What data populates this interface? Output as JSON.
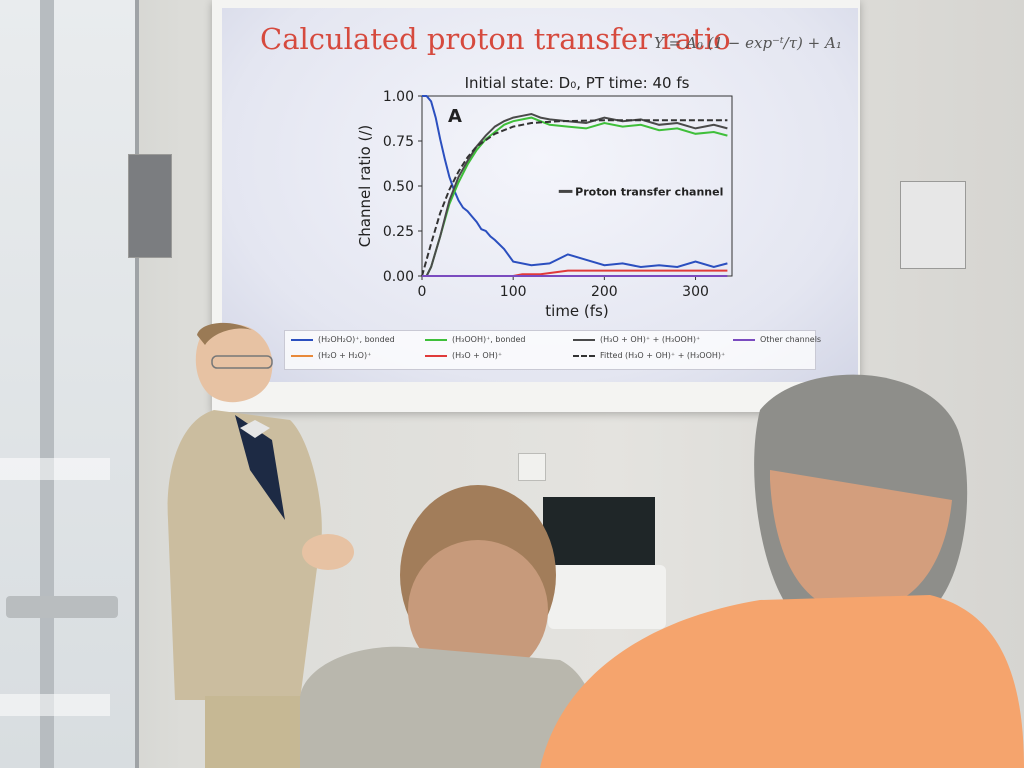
{
  "slide": {
    "title": "Calculated proton transfer ratio",
    "formula": "Y = A₀ (1 − exp⁻ᵗ/τ) + A₁"
  },
  "chart_data": {
    "type": "line",
    "title": "Initial state: D₀, PT time: 40 fs",
    "panel_label": "A",
    "xlabel": "time (fs)",
    "ylabel": "Channel ratio (/)",
    "xlim": [
      0,
      340
    ],
    "ylim": [
      0,
      1.0
    ],
    "xticks": [
      "0",
      "100",
      "200",
      "300"
    ],
    "yticks": [
      "0.00",
      "0.25",
      "0.50",
      "0.75",
      "1.00"
    ],
    "annotation": "Proton transfer channel",
    "series": [
      {
        "name": "(H₂OH₂O)⁺, bonded",
        "color": "#2b4fbf",
        "x": [
          0,
          5,
          10,
          15,
          20,
          25,
          30,
          35,
          40,
          45,
          50,
          55,
          60,
          65,
          70,
          75,
          80,
          90,
          100,
          120,
          140,
          160,
          180,
          200,
          220,
          240,
          260,
          280,
          300,
          320,
          335
        ],
        "y": [
          1.0,
          1.0,
          0.97,
          0.88,
          0.76,
          0.65,
          0.55,
          0.48,
          0.42,
          0.38,
          0.36,
          0.33,
          0.3,
          0.26,
          0.25,
          0.22,
          0.2,
          0.15,
          0.08,
          0.06,
          0.07,
          0.12,
          0.09,
          0.06,
          0.07,
          0.05,
          0.06,
          0.05,
          0.08,
          0.05,
          0.07
        ]
      },
      {
        "name": "(H₂O + H₂O)⁺",
        "color": "#e8893a",
        "x": [
          0,
          335
        ],
        "y": [
          0.0,
          0.0
        ]
      },
      {
        "name": "(H₃OOH)⁺, bonded",
        "color": "#3fbf3a",
        "x": [
          0,
          5,
          10,
          20,
          30,
          40,
          50,
          60,
          70,
          80,
          90,
          100,
          110,
          120,
          130,
          140,
          160,
          180,
          200,
          220,
          240,
          260,
          280,
          300,
          320,
          335
        ],
        "y": [
          0.0,
          0.0,
          0.05,
          0.22,
          0.4,
          0.52,
          0.62,
          0.7,
          0.76,
          0.8,
          0.84,
          0.86,
          0.87,
          0.88,
          0.86,
          0.84,
          0.83,
          0.82,
          0.85,
          0.83,
          0.84,
          0.81,
          0.82,
          0.79,
          0.8,
          0.78
        ]
      },
      {
        "name": "(H₃O + OH)⁺",
        "color": "#e03a3a",
        "x": [
          0,
          100,
          110,
          130,
          160,
          200,
          250,
          300,
          335
        ],
        "y": [
          0.0,
          0.0,
          0.01,
          0.01,
          0.03,
          0.03,
          0.03,
          0.03,
          0.03
        ]
      },
      {
        "name": "(H₃O + OH)⁺ + (H₃OOH)⁺",
        "color": "#4a4a4a",
        "x": [
          0,
          5,
          10,
          20,
          30,
          40,
          50,
          60,
          70,
          80,
          90,
          100,
          110,
          120,
          130,
          140,
          160,
          180,
          200,
          220,
          240,
          260,
          280,
          300,
          320,
          335
        ],
        "y": [
          0.0,
          0.0,
          0.05,
          0.22,
          0.42,
          0.55,
          0.64,
          0.72,
          0.78,
          0.83,
          0.86,
          0.88,
          0.89,
          0.9,
          0.88,
          0.87,
          0.86,
          0.85,
          0.88,
          0.86,
          0.87,
          0.84,
          0.85,
          0.82,
          0.84,
          0.82
        ]
      },
      {
        "name": "Fitted (H₃O + OH)⁺ + (H₃OOH)⁺",
        "color": "#333333",
        "dashed": true,
        "x": [
          0,
          10,
          20,
          30,
          40,
          50,
          60,
          80,
          100,
          120,
          150,
          200,
          250,
          300,
          335
        ],
        "y": [
          0.0,
          0.18,
          0.35,
          0.48,
          0.58,
          0.66,
          0.72,
          0.79,
          0.83,
          0.85,
          0.86,
          0.865,
          0.865,
          0.865,
          0.865
        ]
      },
      {
        "name": "Other channels",
        "color": "#7a4bbf",
        "x": [
          0,
          335
        ],
        "y": [
          0.0,
          0.0
        ]
      }
    ]
  },
  "legend": [
    {
      "label": "(H₂OH₂O)⁺, bonded",
      "color": "#2b4fbf"
    },
    {
      "label": "(H₂O + H₂O)⁺",
      "color": "#e8893a"
    },
    {
      "label": "(H₃OOH)⁺, bonded",
      "color": "#3fbf3a"
    },
    {
      "label": "(H₃O + OH)⁺",
      "color": "#e03a3a"
    },
    {
      "label": "(H₃O + OH)⁺ + (H₃OOH)⁺",
      "color": "#4a4a4a"
    },
    {
      "label": "Fitted (H₃O + OH)⁺ + (H₃OOH)⁺",
      "color": "#333333",
      "dashed": true
    },
    {
      "label": "Other channels",
      "color": "#7a4bbf"
    }
  ],
  "scene": {
    "presenter_jacket_color": "#cbbd9f",
    "audience_shirt_color": "#f5a46d",
    "audience_sweater_color": "#b9b7ad"
  }
}
